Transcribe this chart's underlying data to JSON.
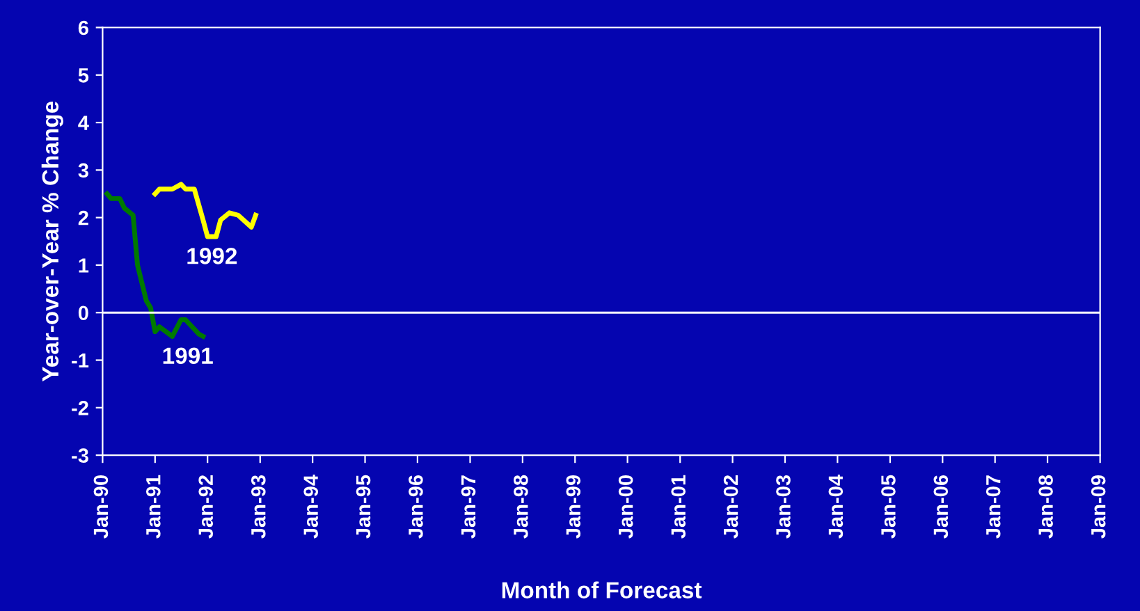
{
  "chart_data": {
    "type": "line",
    "xlabel": "Month of Forecast",
    "ylabel": "Year-over-Year % Change",
    "series": [
      {
        "name": "1991",
        "color": "#007a00",
        "x": [
          "1990-02",
          "1990-03",
          "1990-05",
          "1990-06",
          "1990-08",
          "1990-09",
          "1990-11",
          "1990-12",
          "1991-01",
          "1991-02",
          "1991-05",
          "1991-07",
          "1991-08",
          "1991-11",
          "1991-12"
        ],
        "values": [
          2.5,
          2.4,
          2.4,
          2.2,
          2.05,
          1.0,
          0.25,
          0.1,
          -0.4,
          -0.3,
          -0.5,
          -0.15,
          -0.15,
          -0.45,
          -0.5
        ]
      },
      {
        "name": "1992",
        "color": "#ffff00",
        "x": [
          "1991-01",
          "1991-02",
          "1991-05",
          "1991-07",
          "1991-08",
          "1991-10",
          "1991-12",
          "1992-01",
          "1992-03",
          "1992-04",
          "1992-06",
          "1992-08",
          "1992-11",
          "1992-12"
        ],
        "values": [
          2.5,
          2.6,
          2.6,
          2.7,
          2.6,
          2.6,
          1.95,
          1.6,
          1.6,
          1.95,
          2.1,
          2.05,
          1.8,
          2.05
        ]
      }
    ],
    "ref_lines": [
      {
        "axis": "y",
        "value": 0,
        "color": "#ffffff"
      }
    ],
    "xlim": [
      "1990-01",
      "2009-01"
    ],
    "xticks": [
      {
        "value": "1990-01",
        "label": "Jan-90"
      },
      {
        "value": "1991-01",
        "label": "Jan-91"
      },
      {
        "value": "1992-01",
        "label": "Jan-92"
      },
      {
        "value": "1993-01",
        "label": "Jan-93"
      },
      {
        "value": "1994-01",
        "label": "Jan-94"
      },
      {
        "value": "1995-01",
        "label": "Jan-95"
      },
      {
        "value": "1996-01",
        "label": "Jan-96"
      },
      {
        "value": "1997-01",
        "label": "Jan-97"
      },
      {
        "value": "1998-01",
        "label": "Jan-98"
      },
      {
        "value": "1999-01",
        "label": "Jan-99"
      },
      {
        "value": "2000-01",
        "label": "Jan-00"
      },
      {
        "value": "2001-01",
        "label": "Jan-01"
      },
      {
        "value": "2002-01",
        "label": "Jan-02"
      },
      {
        "value": "2003-01",
        "label": "Jan-03"
      },
      {
        "value": "2004-01",
        "label": "Jan-04"
      },
      {
        "value": "2005-01",
        "label": "Jan-05"
      },
      {
        "value": "2006-01",
        "label": "Jan-06"
      },
      {
        "value": "2007-01",
        "label": "Jan-07"
      },
      {
        "value": "2008-01",
        "label": "Jan-08"
      },
      {
        "value": "2009-01",
        "label": "Jan-09"
      }
    ],
    "ylim": [
      -3,
      6
    ],
    "yticks": [
      -3,
      -2,
      -1,
      0,
      1,
      2,
      3,
      4,
      5,
      6
    ],
    "grid": false,
    "marker": "none",
    "line_style": "solid"
  }
}
